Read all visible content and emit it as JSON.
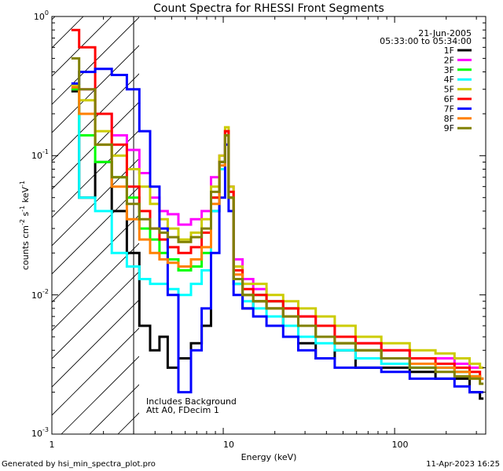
{
  "chart_data": {
    "type": "line",
    "title": "Count Spectra for RHESSI Front Segments",
    "xlabel": "Energy (keV)",
    "ylabel_base": "counts cm",
    "ylabel_exp1": "-2",
    "ylabel_mid1": " s",
    "ylabel_exp2": "-1",
    "ylabel_mid2": " keV",
    "ylabel_exp3": "-1",
    "x_scale": "log",
    "y_scale": "log",
    "xlim": [
      1.0,
      340
    ],
    "ylim": [
      0.001,
      1.0
    ],
    "x_ticks": [
      {
        "v": 1,
        "t": "1"
      },
      {
        "v": 10,
        "t": "10"
      },
      {
        "v": 100,
        "t": "100"
      }
    ],
    "y_ticks": [
      {
        "v": 1.0,
        "b": "10",
        "e": "0"
      },
      {
        "v": 0.1,
        "b": "10",
        "e": "-1"
      },
      {
        "v": 0.01,
        "b": "10",
        "e": "-2"
      },
      {
        "v": 0.001,
        "b": "10",
        "e": "-3"
      }
    ],
    "annotations": {
      "date": "21-Jun-2005",
      "time_range": "05:33:00 to 05:34:00",
      "note1": "Includes Background",
      "note2": "Att A0, FDecim 1"
    },
    "shaded_region_xmax": 3.0,
    "series": [
      {
        "name": "1F",
        "color": "#000000",
        "x": [
          1.3,
          1.6,
          2.0,
          2.5,
          3.0,
          3.5,
          4.0,
          4.5,
          5.0,
          6.0,
          7.0,
          8.0,
          9.0,
          10.0,
          10.5,
          11.0,
          12.0,
          14.0,
          16.0,
          20.0,
          25.0,
          30.0,
          40.0,
          50.0,
          70.0,
          100.0,
          150.0,
          200.0,
          250.0,
          300.0,
          330.0
        ],
        "y": [
          0.29,
          0.05,
          0.09,
          0.04,
          0.02,
          0.006,
          0.004,
          0.005,
          0.003,
          0.0035,
          0.0045,
          0.006,
          0.04,
          0.09,
          0.15,
          0.05,
          0.012,
          0.008,
          0.009,
          0.008,
          0.006,
          0.0045,
          0.0035,
          0.004,
          0.003,
          0.003,
          0.0028,
          0.0025,
          0.0025,
          0.002,
          0.0018
        ]
      },
      {
        "name": "2F",
        "color": "#ff00ff",
        "x": [
          1.3,
          1.6,
          2.0,
          2.5,
          3.0,
          3.5,
          4.0,
          4.5,
          5.0,
          6.0,
          7.0,
          8.0,
          9.0,
          10.0,
          10.5,
          11.0,
          12.0,
          14.0,
          16.0,
          20.0,
          25.0,
          30.0,
          40.0,
          50.0,
          70.0,
          100.0,
          150.0,
          200.0,
          250.0,
          300.0,
          330.0
        ],
        "y": [
          0.3,
          0.3,
          0.2,
          0.14,
          0.11,
          0.075,
          0.05,
          0.04,
          0.038,
          0.032,
          0.035,
          0.04,
          0.07,
          0.1,
          0.15,
          0.06,
          0.018,
          0.013,
          0.011,
          0.009,
          0.008,
          0.007,
          0.006,
          0.005,
          0.0045,
          0.004,
          0.0035,
          0.0035,
          0.0032,
          0.003,
          0.003
        ]
      },
      {
        "name": "3F",
        "color": "#00ff00",
        "x": [
          1.3,
          1.6,
          2.0,
          2.5,
          3.0,
          3.5,
          4.0,
          4.5,
          5.0,
          6.0,
          7.0,
          8.0,
          9.0,
          10.0,
          10.5,
          11.0,
          12.0,
          14.0,
          16.0,
          20.0,
          25.0,
          30.0,
          40.0,
          50.0,
          70.0,
          100.0,
          150.0,
          200.0,
          250.0,
          300.0,
          330.0
        ],
        "y": [
          0.3,
          0.14,
          0.09,
          0.07,
          0.05,
          0.03,
          0.025,
          0.02,
          0.018,
          0.015,
          0.016,
          0.02,
          0.05,
          0.09,
          0.14,
          0.05,
          0.013,
          0.01,
          0.01,
          0.009,
          0.008,
          0.006,
          0.005,
          0.0045,
          0.004,
          0.0035,
          0.003,
          0.003,
          0.0028,
          0.0026,
          0.0025
        ]
      },
      {
        "name": "4F",
        "color": "#00ffff",
        "x": [
          1.3,
          1.6,
          2.0,
          2.5,
          3.0,
          3.5,
          4.0,
          4.5,
          5.0,
          6.0,
          7.0,
          8.0,
          9.0,
          10.0,
          10.5,
          11.0,
          12.0,
          14.0,
          16.0,
          20.0,
          25.0,
          30.0,
          40.0,
          50.0,
          70.0,
          100.0,
          150.0,
          200.0,
          250.0,
          300.0,
          330.0
        ],
        "y": [
          0.32,
          0.05,
          0.04,
          0.02,
          0.016,
          0.013,
          0.012,
          0.012,
          0.011,
          0.01,
          0.012,
          0.015,
          0.04,
          0.08,
          0.14,
          0.05,
          0.012,
          0.009,
          0.008,
          0.007,
          0.006,
          0.005,
          0.0045,
          0.004,
          0.0035,
          0.0032,
          0.003,
          0.003,
          0.0028,
          0.0026,
          0.0025
        ]
      },
      {
        "name": "5F",
        "color": "#cccc00",
        "x": [
          1.3,
          1.6,
          2.0,
          2.5,
          3.0,
          3.5,
          4.0,
          4.5,
          5.0,
          6.0,
          7.0,
          8.0,
          9.0,
          10.0,
          10.5,
          11.0,
          12.0,
          14.0,
          16.0,
          20.0,
          25.0,
          30.0,
          40.0,
          50.0,
          70.0,
          100.0,
          150.0,
          200.0,
          250.0,
          300.0,
          330.0
        ],
        "y": [
          0.32,
          0.25,
          0.15,
          0.1,
          0.08,
          0.06,
          0.045,
          0.035,
          0.03,
          0.025,
          0.028,
          0.035,
          0.06,
          0.1,
          0.16,
          0.06,
          0.016,
          0.012,
          0.012,
          0.01,
          0.009,
          0.008,
          0.007,
          0.006,
          0.005,
          0.0045,
          0.004,
          0.0038,
          0.0035,
          0.0032,
          0.003
        ]
      },
      {
        "name": "6F",
        "color": "#ff0000",
        "x": [
          1.3,
          1.6,
          2.0,
          2.5,
          3.0,
          3.5,
          4.0,
          4.5,
          5.0,
          6.0,
          7.0,
          8.0,
          9.0,
          10.0,
          10.5,
          11.0,
          12.0,
          14.0,
          16.0,
          20.0,
          25.0,
          30.0,
          40.0,
          50.0,
          70.0,
          100.0,
          150.0,
          200.0,
          250.0,
          300.0,
          330.0
        ],
        "y": [
          0.8,
          0.6,
          0.2,
          0.12,
          0.06,
          0.04,
          0.03,
          0.025,
          0.022,
          0.02,
          0.022,
          0.028,
          0.05,
          0.09,
          0.15,
          0.055,
          0.015,
          0.011,
          0.01,
          0.009,
          0.008,
          0.007,
          0.006,
          0.005,
          0.0045,
          0.004,
          0.0035,
          0.0032,
          0.003,
          0.0028,
          0.0025
        ]
      },
      {
        "name": "7F",
        "color": "#0000ff",
        "x": [
          1.3,
          1.6,
          2.0,
          2.5,
          3.0,
          3.5,
          4.0,
          4.5,
          5.0,
          6.0,
          7.0,
          8.0,
          9.0,
          10.0,
          10.5,
          11.0,
          12.0,
          14.0,
          16.0,
          20.0,
          25.0,
          30.0,
          40.0,
          50.0,
          70.0,
          100.0,
          150.0,
          200.0,
          250.0,
          300.0,
          330.0
        ],
        "y": [
          0.33,
          0.4,
          0.42,
          0.38,
          0.3,
          0.15,
          0.06,
          0.03,
          0.01,
          0.002,
          0.004,
          0.008,
          0.02,
          0.05,
          0.12,
          0.04,
          0.01,
          0.008,
          0.007,
          0.006,
          0.005,
          0.004,
          0.0035,
          0.003,
          0.003,
          0.0028,
          0.0025,
          0.0025,
          0.0022,
          0.002,
          0.002
        ]
      },
      {
        "name": "8F",
        "color": "#ff8000",
        "x": [
          1.3,
          1.6,
          2.0,
          2.5,
          3.0,
          3.5,
          4.0,
          4.5,
          5.0,
          6.0,
          7.0,
          8.0,
          9.0,
          10.0,
          10.5,
          11.0,
          12.0,
          14.0,
          16.0,
          20.0,
          25.0,
          30.0,
          40.0,
          50.0,
          70.0,
          100.0,
          150.0,
          200.0,
          250.0,
          300.0,
          330.0
        ],
        "y": [
          0.31,
          0.2,
          0.12,
          0.06,
          0.035,
          0.025,
          0.02,
          0.018,
          0.017,
          0.016,
          0.018,
          0.022,
          0.045,
          0.085,
          0.14,
          0.05,
          0.014,
          0.01,
          0.009,
          0.008,
          0.007,
          0.006,
          0.005,
          0.0045,
          0.004,
          0.0035,
          0.0032,
          0.003,
          0.0028,
          0.0026,
          0.0025
        ]
      },
      {
        "name": "9F",
        "color": "#808000",
        "x": [
          1.3,
          1.6,
          2.0,
          2.5,
          3.0,
          3.5,
          4.0,
          4.5,
          5.0,
          6.0,
          7.0,
          8.0,
          9.0,
          10.0,
          10.5,
          11.0,
          12.0,
          14.0,
          16.0,
          20.0,
          25.0,
          30.0,
          40.0,
          50.0,
          70.0,
          100.0,
          150.0,
          200.0,
          250.0,
          300.0,
          330.0
        ],
        "y": [
          0.5,
          0.3,
          0.12,
          0.07,
          0.045,
          0.035,
          0.03,
          0.028,
          0.026,
          0.024,
          0.026,
          0.03,
          0.055,
          0.09,
          0.14,
          0.05,
          0.013,
          0.01,
          0.009,
          0.008,
          0.007,
          0.006,
          0.005,
          0.0045,
          0.004,
          0.0035,
          0.003,
          0.0028,
          0.0026,
          0.0025,
          0.0023
        ]
      }
    ]
  },
  "footer": {
    "left": "Generated by hsi_min_spectra_plot.pro",
    "right": "11-Apr-2023 16:25"
  }
}
